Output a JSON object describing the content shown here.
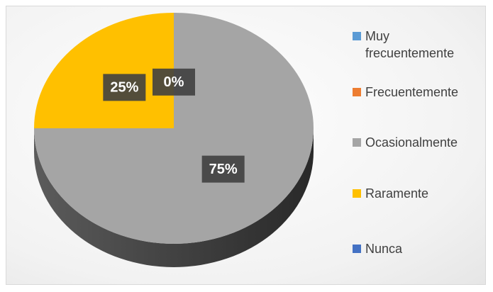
{
  "chart_data": {
    "type": "pie",
    "categories": [
      "Muy frecuentemente",
      "Frecuentemente",
      "Ocasionalmente",
      "Raramente",
      "Nunca"
    ],
    "values": [
      0,
      0,
      75,
      25,
      0
    ],
    "value_labels": [
      "0%",
      null,
      "75%",
      "25%",
      null
    ],
    "colors": [
      "#5b9bd5",
      "#ed7d31",
      "#a5a5a5",
      "#ffc000",
      "#4472c4"
    ],
    "legend": "right"
  }
}
